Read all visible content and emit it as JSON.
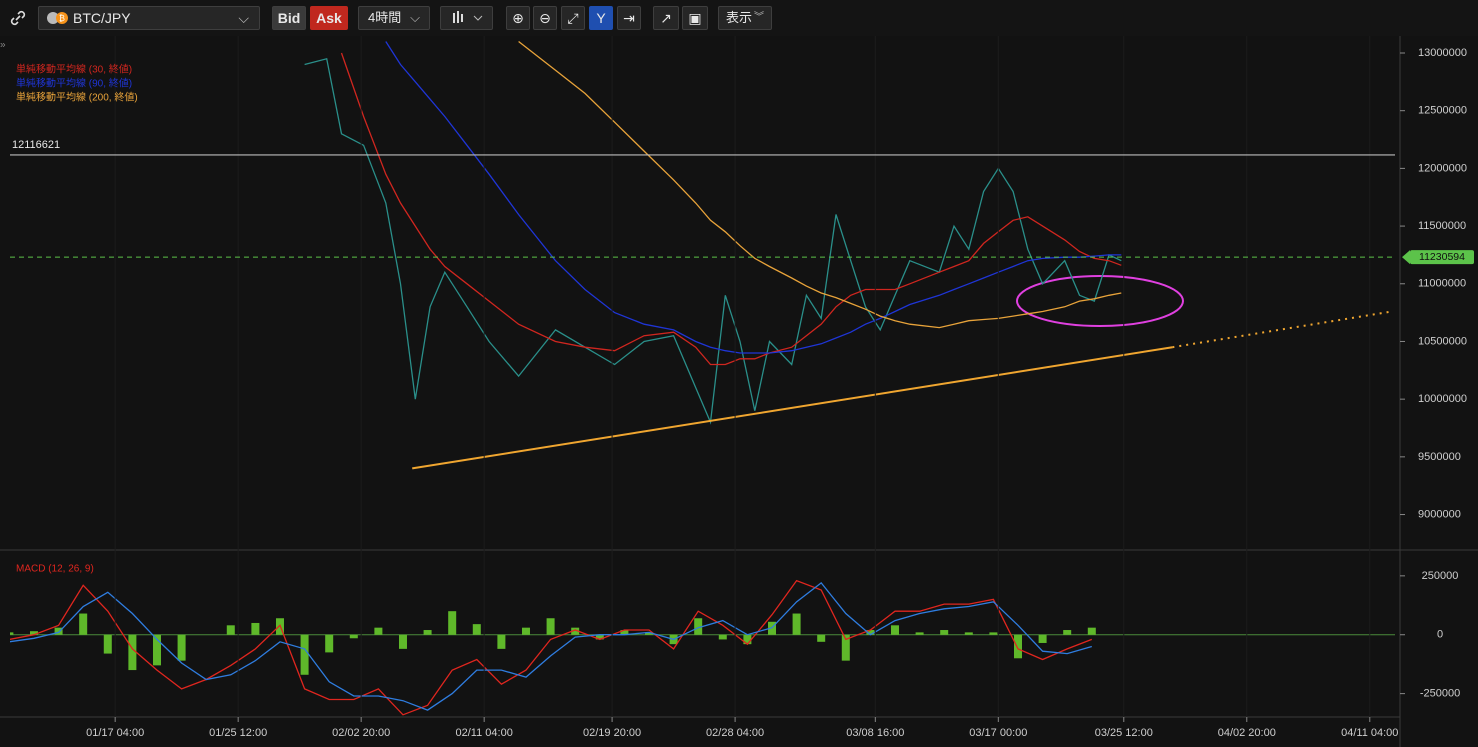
{
  "toolbar": {
    "symbol": "BTC/JPY",
    "bid": "Bid",
    "ask": "Ask",
    "timeframe": "4時間",
    "display": "表示"
  },
  "chart_data": [
    {
      "type": "line",
      "x": [
        "01/30 00:00",
        "01/31 12:00",
        "02/01 12:00",
        "02/03 00:00",
        "02/04 12:00",
        "02/05 12:00",
        "02/06 12:00",
        "02/07 12:00",
        "02/08 12:00",
        "02/10 00:00",
        "02/11 12:00",
        "02/13 12:00",
        "02/16 00:00",
        "02/18 00:00",
        "02/20 00:00",
        "02/22 00:00",
        "02/24 00:00",
        "02/25 12:00",
        "02/26 12:00",
        "02/27 12:00",
        "02/28 12:00",
        "02/29 12:00",
        "03/01 12:00",
        "03/03 00:00",
        "03/04 00:00",
        "03/05 00:00",
        "03/06 00:00",
        "03/07 00:00",
        "03/08 00:00",
        "03/09 00:00",
        "03/10 00:00",
        "03/11 00:00",
        "03/13 00:00",
        "03/14 00:00",
        "03/15 00:00",
        "03/16 00:00",
        "03/17 00:00",
        "03/18 00:00",
        "03/19 00:00",
        "03/20 00:00",
        "03/21 12:00",
        "03/22 12:00",
        "03/23 12:00",
        "03/24 12:00",
        "03/25 08:00"
      ],
      "price": {
        "color": "#2a8f8a",
        "values": [
          12900000,
          12950000,
          12300000,
          12200000,
          11700000,
          11000000,
          10000000,
          10800000,
          11100000,
          10800000,
          10500000,
          10200000,
          10600000,
          10450000,
          10300000,
          10500000,
          10550000,
          10100000,
          9800000,
          10900000,
          10500000,
          9900000,
          10500000,
          10300000,
          10900000,
          10700000,
          11600000,
          11200000,
          10800000,
          10600000,
          10900000,
          11200000,
          11100000,
          11500000,
          11300000,
          11800000,
          12000000,
          11800000,
          11300000,
          11000000,
          11200000,
          10900000,
          10850000,
          11250000,
          11200000
        ]
      },
      "series": [
        {
          "name": "単純移動平均線 (30, 終値)",
          "color": "#d0261f",
          "values": [
            null,
            null,
            13000000,
            12450000,
            11950000,
            11700000,
            11500000,
            11300000,
            11150000,
            11000000,
            10850000,
            10650000,
            10500000,
            10450000,
            10420000,
            10550000,
            10580000,
            10450000,
            10300000,
            10300000,
            10350000,
            10350000,
            10400000,
            10450000,
            10550000,
            10650000,
            10800000,
            10900000,
            10950000,
            10950000,
            10950000,
            11000000,
            11100000,
            11150000,
            11200000,
            11350000,
            11450000,
            11550000,
            11580000,
            11500000,
            11380000,
            11280000,
            11220000,
            11200000,
            11160000
          ]
        },
        {
          "name": "単純移動平均線 (90, 終値)",
          "color": "#1f35d6",
          "values": [
            null,
            null,
            null,
            null,
            13100000,
            12900000,
            12750000,
            12600000,
            12450000,
            12200000,
            11950000,
            11600000,
            11200000,
            10950000,
            10750000,
            10650000,
            10600000,
            10500000,
            10450000,
            10420000,
            10400000,
            10400000,
            10400000,
            10420000,
            10450000,
            10480000,
            10530000,
            10580000,
            10650000,
            10700000,
            10760000,
            10820000,
            10900000,
            10950000,
            11000000,
            11050000,
            11100000,
            11150000,
            11200000,
            11220000,
            11230000,
            11230000,
            11240000,
            11250000,
            11250000
          ]
        },
        {
          "name": "単純移動平均線 (200, 終値)",
          "color": "#e8a33a",
          "values": [
            null,
            null,
            null,
            null,
            null,
            null,
            null,
            null,
            null,
            null,
            null,
            13100000,
            12850000,
            12650000,
            12400000,
            12150000,
            11900000,
            11700000,
            11550000,
            11450000,
            11330000,
            11220000,
            11150000,
            11050000,
            10980000,
            10920000,
            10880000,
            10830000,
            10780000,
            10720000,
            10680000,
            10650000,
            10620000,
            10650000,
            10680000,
            10690000,
            10700000,
            10720000,
            10740000,
            10760000,
            10800000,
            10850000,
            10870000,
            10900000,
            10920000
          ]
        }
      ],
      "trendline": {
        "color": "#f0a630",
        "x": [
          "02/06 07:00",
          "03/28 19:00",
          "04/12 16:00"
        ],
        "values": [
          9400000,
          10450000,
          10760000
        ]
      },
      "reference_line": 12116621,
      "last_price": 11230594,
      "xlim": [
        "01/10 01:00",
        "04/12 21:00"
      ],
      "xticks": [
        "01/17 04:00",
        "01/25 12:00",
        "02/02 20:00",
        "02/11 04:00",
        "02/19 20:00",
        "02/28 04:00",
        "03/08 16:00",
        "03/17 00:00",
        "03/25 12:00",
        "04/02 20:00",
        "04/11 04:00"
      ],
      "ylim": [
        8710000,
        13130000
      ],
      "yticks": [
        9000000,
        9500000,
        10000000,
        10500000,
        11000000,
        11500000,
        12000000,
        12500000,
        13000000
      ]
    },
    {
      "type": "macd",
      "title": "MACD (12, 26, 9)",
      "x": [
        "01/10 00:00",
        "01/11 16:00",
        "01/13 08:00",
        "01/15 00:00",
        "01/16 16:00",
        "01/18 08:00",
        "01/20 00:00",
        "01/21 16:00",
        "01/23 08:00",
        "01/25 00:00",
        "01/26 16:00",
        "01/28 08:00",
        "01/30 00:00",
        "01/31 16:00",
        "02/02 08:00",
        "02/04 00:00",
        "02/05 16:00",
        "02/07 08:00",
        "02/09 00:00",
        "02/10 16:00",
        "02/12 08:00",
        "02/14 00:00",
        "02/15 16:00",
        "02/17 08:00",
        "02/19 00:00",
        "02/20 16:00",
        "02/22 08:00",
        "02/24 00:00",
        "02/25 16:00",
        "02/27 08:00",
        "02/29 00:00",
        "03/01 16:00",
        "03/03 08:00",
        "03/05 00:00",
        "03/06 16:00",
        "03/08 08:00",
        "03/10 00:00",
        "03/11 16:00",
        "03/13 08:00",
        "03/15 00:00",
        "03/16 16:00",
        "03/18 08:00",
        "03/20 00:00",
        "03/21 16:00",
        "03/23 08:00"
      ],
      "series": [
        {
          "color": "#e0261f",
          "values": [
            -20000,
            0,
            40000,
            210000,
            100000,
            -60000,
            -150000,
            -230000,
            -190000,
            -130000,
            -60000,
            40000,
            -230000,
            -275000,
            -275000,
            -230000,
            -340000,
            -300000,
            -150000,
            -105000,
            -210000,
            -150000,
            -20000,
            20000,
            -20000,
            20000,
            20000,
            -60000,
            100000,
            40000,
            -40000,
            85000,
            230000,
            190000,
            -20000,
            20000,
            100000,
            100000,
            130000,
            130000,
            150000,
            -60000,
            -105000,
            -60000,
            -20000
          ]
        },
        {
          "color": "#2f7de0",
          "values": [
            -30000,
            -15000,
            10000,
            120000,
            180000,
            90000,
            -20000,
            -120000,
            -190000,
            -170000,
            -110000,
            -30000,
            -60000,
            -200000,
            -260000,
            -260000,
            -280000,
            -320000,
            -250000,
            -150000,
            -150000,
            -180000,
            -90000,
            -10000,
            0,
            0,
            10000,
            -20000,
            30000,
            60000,
            0,
            30000,
            140000,
            220000,
            90000,
            0,
            60000,
            90000,
            110000,
            120000,
            140000,
            40000,
            -70000,
            -80000,
            -50000
          ]
        }
      ],
      "histogram": {
        "color": "#5fb82a",
        "values": [
          10000,
          15000,
          30000,
          90000,
          -80000,
          -150000,
          -130000,
          -110000,
          0,
          40000,
          50000,
          70000,
          -170000,
          -75000,
          -15000,
          30000,
          -60000,
          20000,
          100000,
          45000,
          -60000,
          30000,
          70000,
          30000,
          -20000,
          20000,
          10000,
          -40000,
          70000,
          -20000,
          -40000,
          55000,
          90000,
          -30000,
          -110000,
          20000,
          40000,
          10000,
          20000,
          10000,
          10000,
          -100000,
          -35000,
          20000,
          30000
        ]
      },
      "ylim": [
        -345000,
        347000
      ],
      "yticks": [
        -250000,
        0,
        250000
      ]
    }
  ]
}
